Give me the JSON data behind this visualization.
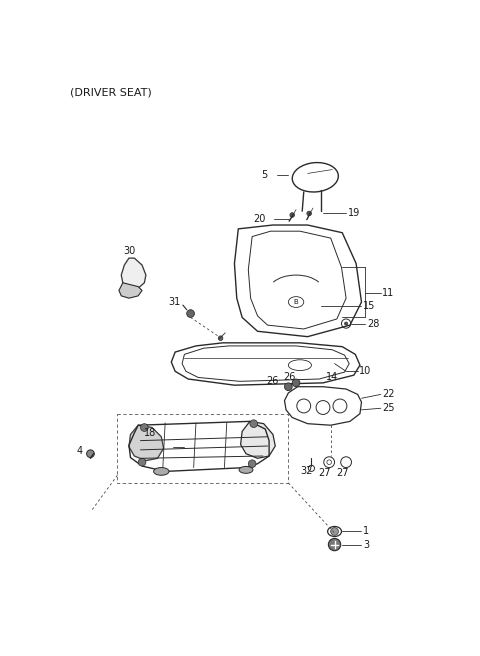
{
  "title": "(DRIVER SEAT)",
  "bg": "#ffffff",
  "lc": "#2a2a2a",
  "tc": "#1a1a1a",
  "fs": 7.0,
  "fig_w": 4.8,
  "fig_h": 6.56,
  "dpi": 100
}
